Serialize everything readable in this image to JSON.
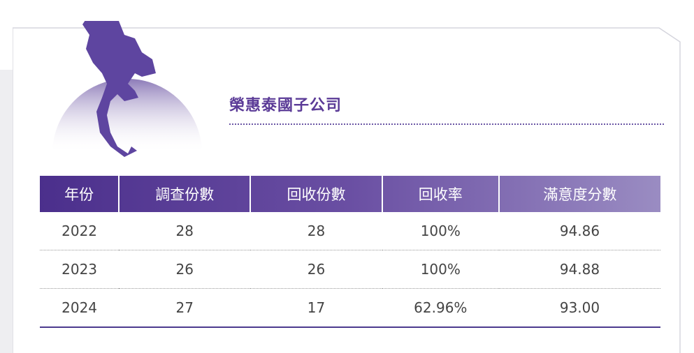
{
  "title": "榮惠泰國子公司",
  "table": {
    "header": [
      "年份",
      "調查份數",
      "回收份數",
      "回收率",
      "滿意度分數"
    ],
    "rows": [
      [
        "2022",
        "28",
        "28",
        "100%",
        "94.86"
      ],
      [
        "2023",
        "26",
        "26",
        "100%",
        "94.88"
      ],
      [
        "2024",
        "27",
        "17",
        "62.96%",
        "93.00"
      ]
    ]
  }
}
